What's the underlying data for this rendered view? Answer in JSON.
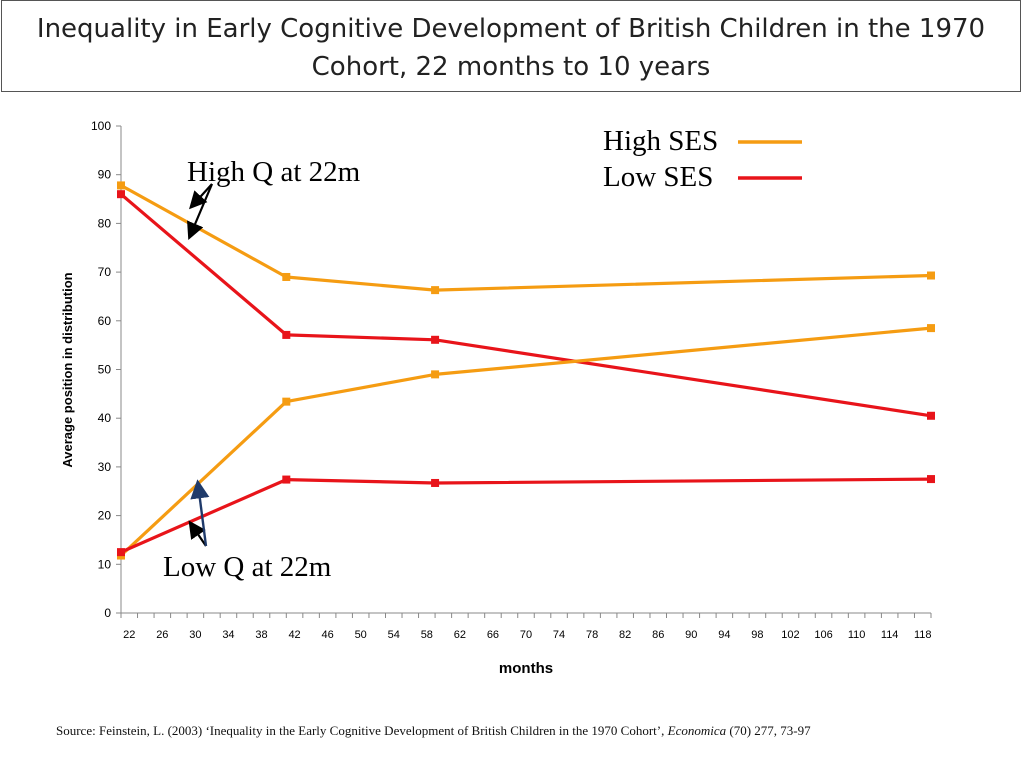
{
  "title": {
    "line1": "Inequality in Early Cognitive Development of British Children in the 1970",
    "line2": "Cohort, 22 months to 10 years"
  },
  "source": {
    "prefix": "Source: Feinstein, L. (2003) ‘Inequality in the Early Cognitive Development of British Children in the 1970 Cohort’, ",
    "journal": "Economica",
    "suffix": " (70) 277, 73-97"
  },
  "annotations": {
    "high_q": "High Q at 22m",
    "low_q": "Low Q at 22m"
  },
  "colors": {
    "high_ses": "#f59c12",
    "low_ses": "#e8141a",
    "annotation_arrow": "#000000",
    "annotation_arrow_blue": "#1f3a6a"
  },
  "chart_data": {
    "type": "line",
    "xlabel": "months",
    "ylabel": "Average position in distribution",
    "ylim": [
      0,
      100
    ],
    "yticks": [
      0,
      10,
      20,
      30,
      40,
      50,
      60,
      70,
      80,
      90,
      100
    ],
    "xticks": [
      22,
      26,
      30,
      34,
      38,
      42,
      46,
      50,
      54,
      58,
      62,
      66,
      70,
      74,
      78,
      82,
      86,
      90,
      94,
      98,
      102,
      106,
      110,
      114,
      118
    ],
    "xlim": [
      22,
      120
    ],
    "legend": {
      "position": "top-right",
      "entries": [
        "High SES",
        "Low SES"
      ]
    },
    "series": [
      {
        "name": "High SES",
        "group": "high_q",
        "color": "#f59c12",
        "x": [
          22,
          42,
          60,
          120
        ],
        "y": [
          87.8,
          69,
          66.3,
          69.3
        ]
      },
      {
        "name": "Low SES",
        "group": "high_q",
        "color": "#e8141a",
        "x": [
          22,
          42,
          60,
          120
        ],
        "y": [
          86,
          57.1,
          56.1,
          40.5
        ]
      },
      {
        "name": "High SES",
        "group": "low_q",
        "color": "#f59c12",
        "x": [
          22,
          42,
          60,
          120
        ],
        "y": [
          11.8,
          43.4,
          49,
          58.5
        ]
      },
      {
        "name": "Low SES",
        "group": "low_q",
        "color": "#e8141a",
        "x": [
          22,
          42,
          60,
          120
        ],
        "y": [
          12.5,
          27.4,
          26.7,
          27.5
        ]
      }
    ]
  }
}
